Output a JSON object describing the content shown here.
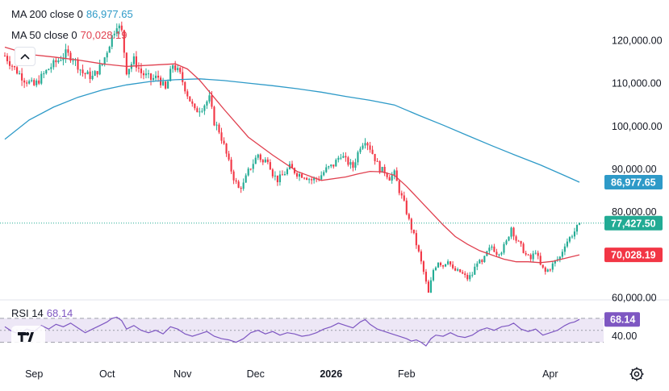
{
  "legend": {
    "ma200_label": "MA 200 close 0",
    "ma200_value": "86,977.65",
    "ma50_label": "MA 50 close 0",
    "ma50_value": "70,028.19",
    "rsi_label": "RSI 14",
    "rsi_value": "68.14"
  },
  "colors": {
    "up": "#22ab94",
    "down": "#f23645",
    "ma200": "#2e9ac8",
    "ma50": "#e0404f",
    "rsi": "#7e57c2",
    "rsi_band": "#ede7f6",
    "price_line": "#22ab94"
  },
  "icons": {
    "collapse": "chevron-up-icon",
    "logo": "tradingview-logo-icon",
    "settings": "gear-icon"
  },
  "chart_data": {
    "type": "candlestick",
    "title": "",
    "y_axis": {
      "range": [
        58000,
        128000
      ],
      "ticks": [
        {
          "value": 120000,
          "label": "120,000.00"
        },
        {
          "value": 110000,
          "label": "110,000.00"
        },
        {
          "value": 100000,
          "label": "100,000.00"
        },
        {
          "value": 90000,
          "label": "90,000.00"
        },
        {
          "value": 80000,
          "label": "80,000.00"
        },
        {
          "value": 60000,
          "label": "60,000.00"
        }
      ]
    },
    "x_axis": {
      "labels": [
        {
          "label": "Sep",
          "day": 12,
          "bold": false
        },
        {
          "label": "Oct",
          "day": 42,
          "bold": false
        },
        {
          "label": "Nov",
          "day": 73,
          "bold": false
        },
        {
          "label": "Dec",
          "day": 103,
          "bold": false
        },
        {
          "label": "2026",
          "day": 134,
          "bold": true
        },
        {
          "label": "Feb",
          "day": 165,
          "bold": false
        },
        {
          "label": "Apr",
          "day": 224,
          "bold": false
        }
      ]
    },
    "price_close_path": [
      [
        0,
        116500
      ],
      [
        4,
        113500
      ],
      [
        8,
        111000
      ],
      [
        12,
        109500
      ],
      [
        15,
        111500
      ],
      [
        18,
        113500
      ],
      [
        22,
        115500
      ],
      [
        25,
        117000
      ],
      [
        28,
        116000
      ],
      [
        32,
        112500
      ],
      [
        36,
        111500
      ],
      [
        40,
        114500
      ],
      [
        44,
        121000
      ],
      [
        46,
        124000
      ],
      [
        48,
        122000
      ],
      [
        50,
        113000
      ],
      [
        53,
        115500
      ],
      [
        56,
        112500
      ],
      [
        60,
        111000
      ],
      [
        63,
        111500
      ],
      [
        66,
        108500
      ],
      [
        69,
        114500
      ],
      [
        72,
        112000
      ],
      [
        75,
        107500
      ],
      [
        78,
        103500
      ],
      [
        81,
        104500
      ],
      [
        84,
        106500
      ],
      [
        86,
        101000
      ],
      [
        88,
        99000
      ],
      [
        90,
        95500
      ],
      [
        92,
        91500
      ],
      [
        94,
        88000
      ],
      [
        96,
        85500
      ],
      [
        98,
        86500
      ],
      [
        100,
        89500
      ],
      [
        102,
        91500
      ],
      [
        104,
        93500
      ],
      [
        106,
        91500
      ],
      [
        108,
        92500
      ],
      [
        110,
        89000
      ],
      [
        112,
        87500
      ],
      [
        114,
        88500
      ],
      [
        117,
        90500
      ],
      [
        120,
        89000
      ],
      [
        123,
        88500
      ],
      [
        126,
        87500
      ],
      [
        129,
        88000
      ],
      [
        132,
        90000
      ],
      [
        135,
        91000
      ],
      [
        138,
        93500
      ],
      [
        140,
        92000
      ],
      [
        143,
        90500
      ],
      [
        146,
        95500
      ],
      [
        148,
        97000
      ],
      [
        150,
        95000
      ],
      [
        152,
        92500
      ],
      [
        154,
        90000
      ],
      [
        156,
        89500
      ],
      [
        158,
        88000
      ],
      [
        160,
        89000
      ],
      [
        162,
        85000
      ],
      [
        164,
        82000
      ],
      [
        166,
        78000
      ],
      [
        168,
        74500
      ],
      [
        170,
        70500
      ],
      [
        172,
        66000
      ],
      [
        174,
        61000
      ],
      [
        176,
        66500
      ],
      [
        178,
        68500
      ],
      [
        180,
        67500
      ],
      [
        182,
        69000
      ],
      [
        184,
        66500
      ],
      [
        187,
        66000
      ],
      [
        190,
        64500
      ],
      [
        192,
        65500
      ],
      [
        194,
        68500
      ],
      [
        196,
        68000
      ],
      [
        198,
        70500
      ],
      [
        200,
        72000
      ],
      [
        202,
        70500
      ],
      [
        204,
        71000
      ],
      [
        206,
        73000
      ],
      [
        208,
        76500
      ],
      [
        210,
        73500
      ],
      [
        212,
        72000
      ],
      [
        214,
        70000
      ],
      [
        216,
        69000
      ],
      [
        218,
        71000
      ],
      [
        220,
        67500
      ],
      [
        222,
        66000
      ],
      [
        224,
        67000
      ],
      [
        226,
        68500
      ],
      [
        228,
        69500
      ],
      [
        230,
        72500
      ],
      [
        232,
        74000
      ],
      [
        234,
        75500
      ],
      [
        236,
        77427.5
      ]
    ],
    "series": [
      {
        "name": "MA 200",
        "values": [
          [
            0,
            97000
          ],
          [
            10,
            101500
          ],
          [
            20,
            104500
          ],
          [
            30,
            106800
          ],
          [
            40,
            108500
          ],
          [
            50,
            109700
          ],
          [
            60,
            110500
          ],
          [
            70,
            110900
          ],
          [
            80,
            111100
          ],
          [
            90,
            110700
          ],
          [
            100,
            110100
          ],
          [
            110,
            109500
          ],
          [
            120,
            108800
          ],
          [
            130,
            108000
          ],
          [
            140,
            107000
          ],
          [
            150,
            106100
          ],
          [
            160,
            105000
          ],
          [
            170,
            102600
          ],
          [
            180,
            100300
          ],
          [
            190,
            97900
          ],
          [
            200,
            95500
          ],
          [
            210,
            93200
          ],
          [
            220,
            91000
          ],
          [
            230,
            88500
          ],
          [
            236,
            86977.65
          ]
        ]
      },
      {
        "name": "MA 50",
        "values": [
          [
            0,
            118500
          ],
          [
            10,
            116800
          ],
          [
            20,
            116200
          ],
          [
            30,
            115500
          ],
          [
            40,
            114600
          ],
          [
            50,
            114000
          ],
          [
            60,
            114300
          ],
          [
            70,
            114600
          ],
          [
            75,
            113400
          ],
          [
            80,
            110800
          ],
          [
            90,
            104000
          ],
          [
            100,
            97500
          ],
          [
            110,
            93300
          ],
          [
            120,
            89500
          ],
          [
            130,
            87400
          ],
          [
            140,
            88200
          ],
          [
            145,
            88900
          ],
          [
            150,
            89500
          ],
          [
            155,
            89400
          ],
          [
            160,
            88600
          ],
          [
            165,
            86000
          ],
          [
            170,
            83000
          ],
          [
            175,
            80000
          ],
          [
            180,
            77000
          ],
          [
            185,
            74300
          ],
          [
            190,
            72500
          ],
          [
            195,
            71000
          ],
          [
            200,
            70000
          ],
          [
            205,
            69000
          ],
          [
            210,
            68400
          ],
          [
            215,
            68400
          ],
          [
            220,
            68200
          ],
          [
            225,
            68500
          ],
          [
            230,
            69200
          ],
          [
            236,
            70028.19
          ]
        ]
      }
    ],
    "last_price": {
      "value": 77427.5,
      "label": "77,427.50"
    },
    "price_tags": [
      {
        "name": "ma200-tag",
        "value": 86977.65,
        "label": "86,977.65",
        "color": "#2e9ac8"
      },
      {
        "name": "last-price-tag",
        "value": 77427.5,
        "label": "77,427.50",
        "color": "#22ab94"
      },
      {
        "name": "ma50-tag",
        "value": 70028.19,
        "label": "70,028.19",
        "color": "#f23645"
      }
    ],
    "rsi": {
      "label": "RSI 14",
      "range": [
        20,
        90
      ],
      "upper_band": 70,
      "lower_band": 30,
      "middle": 50,
      "ticks": [
        {
          "value": 40,
          "label": "40.00"
        }
      ],
      "last": {
        "value": 68.14,
        "label": "68.14"
      },
      "values": [
        [
          0,
          56
        ],
        [
          3,
          48
        ],
        [
          6,
          44
        ],
        [
          9,
          52
        ],
        [
          12,
          48
        ],
        [
          15,
          58
        ],
        [
          18,
          52
        ],
        [
          21,
          60
        ],
        [
          24,
          56
        ],
        [
          27,
          62
        ],
        [
          30,
          54
        ],
        [
          33,
          46
        ],
        [
          36,
          52
        ],
        [
          39,
          58
        ],
        [
          42,
          64
        ],
        [
          44,
          70
        ],
        [
          46,
          72
        ],
        [
          48,
          66
        ],
        [
          50,
          52
        ],
        [
          53,
          58
        ],
        [
          56,
          50
        ],
        [
          59,
          46
        ],
        [
          62,
          50
        ],
        [
          65,
          44
        ],
        [
          68,
          56
        ],
        [
          71,
          52
        ],
        [
          74,
          44
        ],
        [
          77,
          40
        ],
        [
          80,
          44
        ],
        [
          83,
          48
        ],
        [
          86,
          40
        ],
        [
          89,
          36
        ],
        [
          92,
          34
        ],
        [
          95,
          30
        ],
        [
          98,
          36
        ],
        [
          101,
          46
        ],
        [
          104,
          50
        ],
        [
          107,
          44
        ],
        [
          110,
          48
        ],
        [
          113,
          42
        ],
        [
          116,
          46
        ],
        [
          119,
          44
        ],
        [
          122,
          40
        ],
        [
          125,
          42
        ],
        [
          128,
          46
        ],
        [
          131,
          52
        ],
        [
          134,
          56
        ],
        [
          137,
          62
        ],
        [
          140,
          58
        ],
        [
          143,
          54
        ],
        [
          146,
          64
        ],
        [
          148,
          68
        ],
        [
          150,
          60
        ],
        [
          153,
          52
        ],
        [
          156,
          48
        ],
        [
          159,
          44
        ],
        [
          162,
          40
        ],
        [
          165,
          36
        ],
        [
          167,
          32
        ],
        [
          169,
          34
        ],
        [
          171,
          30
        ],
        [
          173,
          24
        ],
        [
          175,
          36
        ],
        [
          177,
          42
        ],
        [
          180,
          40
        ],
        [
          183,
          46
        ],
        [
          186,
          40
        ],
        [
          189,
          38
        ],
        [
          192,
          42
        ],
        [
          195,
          50
        ],
        [
          198,
          54
        ],
        [
          201,
          50
        ],
        [
          204,
          56
        ],
        [
          207,
          58
        ],
        [
          209,
          62
        ],
        [
          212,
          52
        ],
        [
          215,
          48
        ],
        [
          218,
          52
        ],
        [
          221,
          42
        ],
        [
          224,
          46
        ],
        [
          227,
          50
        ],
        [
          230,
          58
        ],
        [
          232,
          62
        ],
        [
          234,
          64
        ],
        [
          236,
          68.14
        ]
      ]
    }
  }
}
